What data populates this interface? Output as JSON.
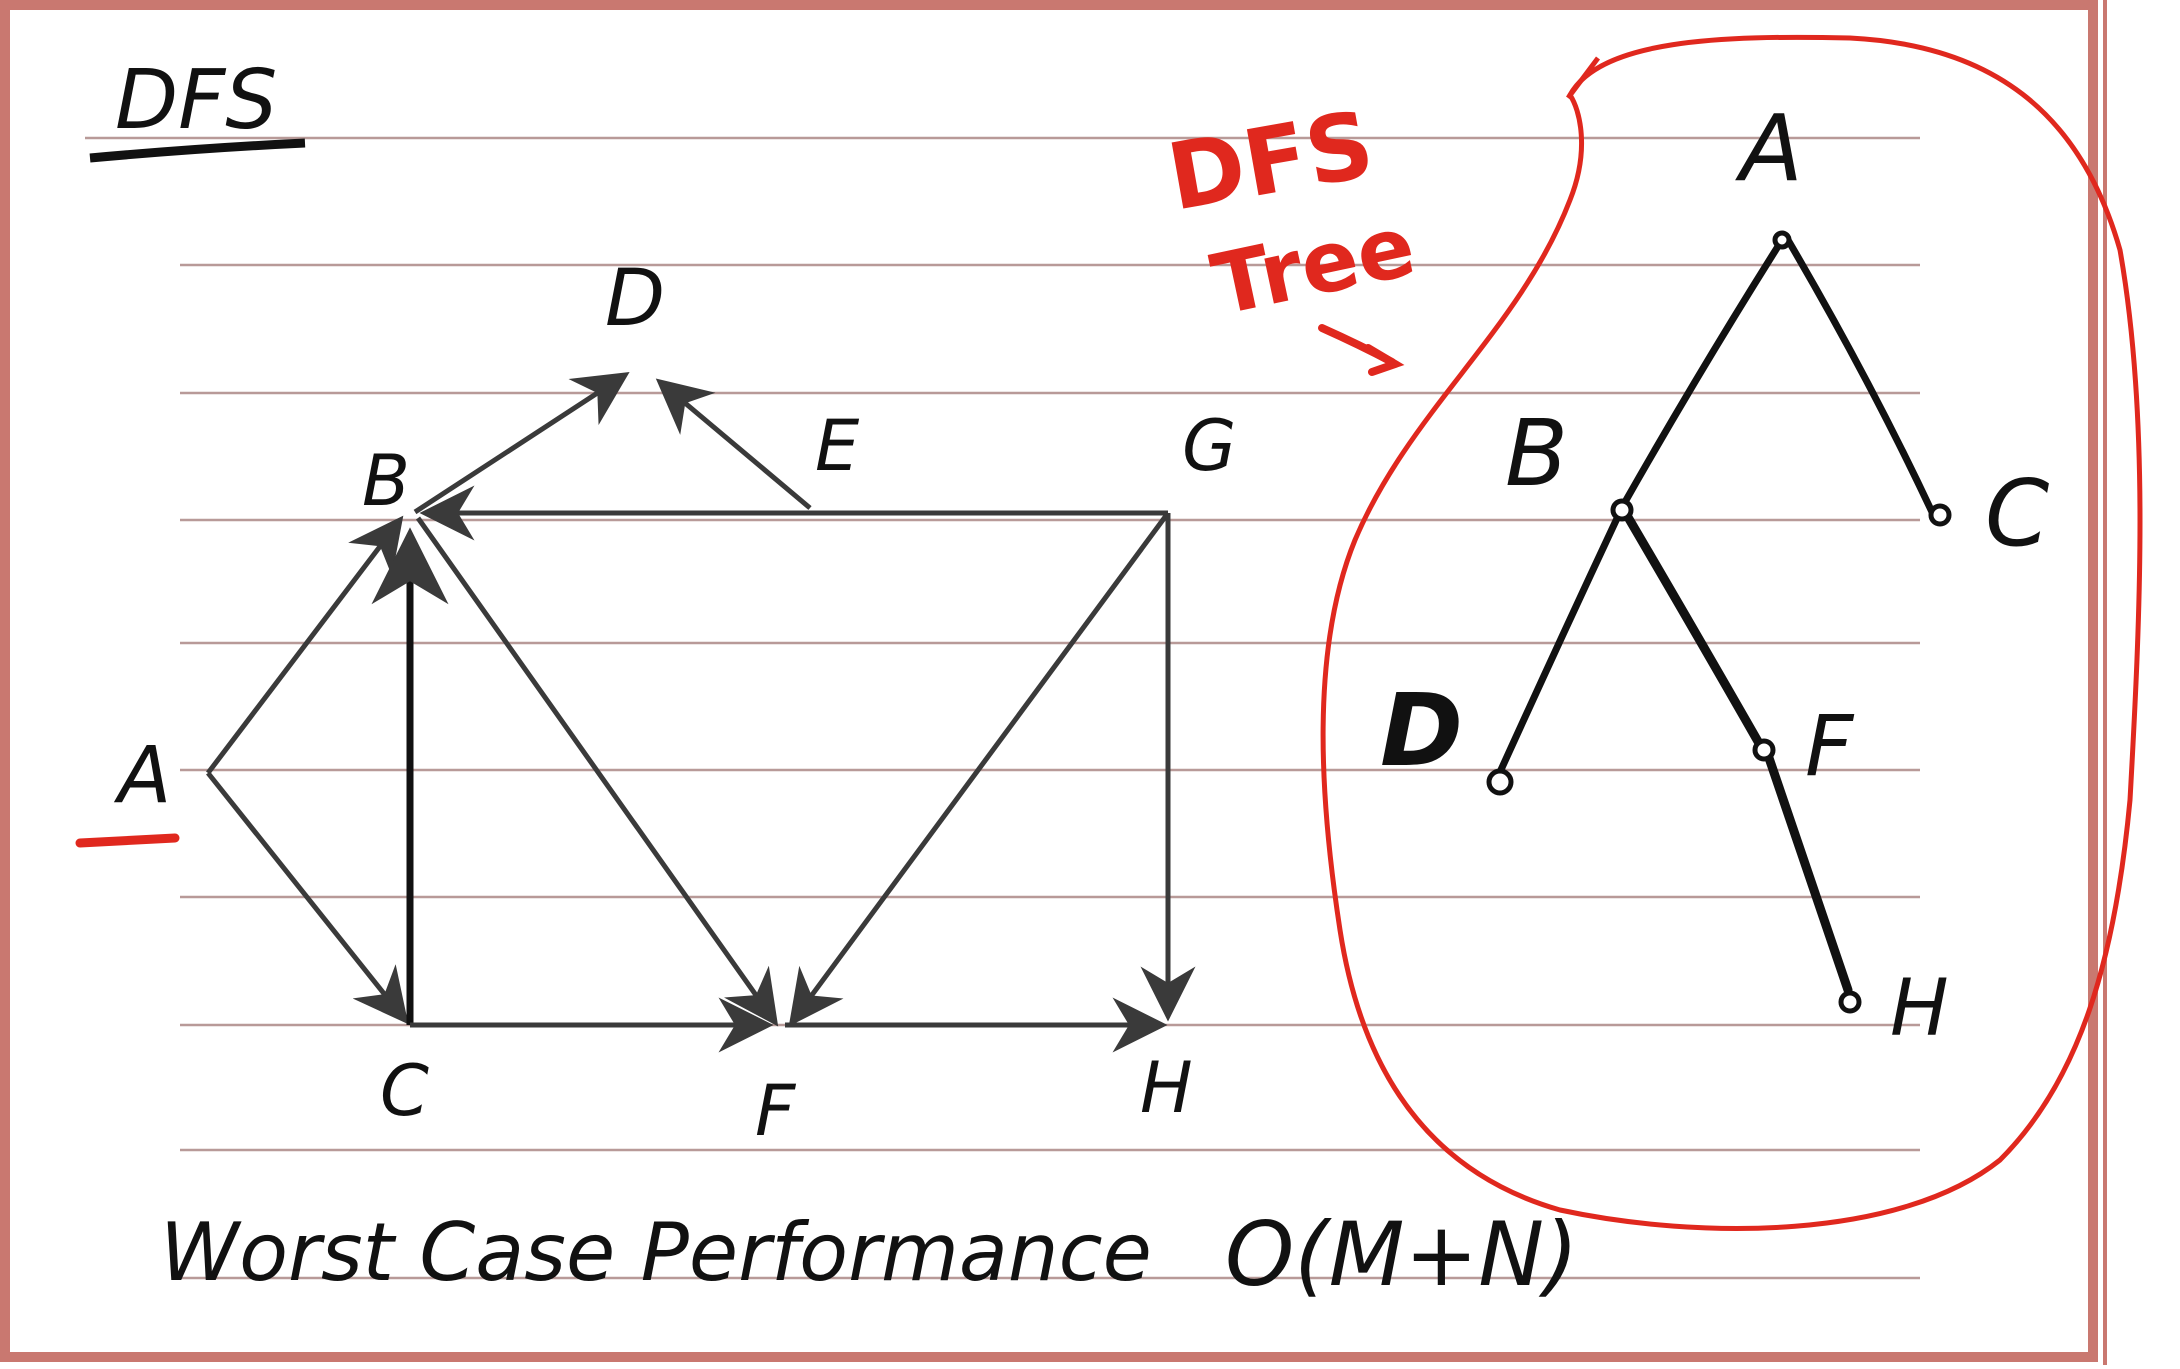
{
  "title": "DFS",
  "graph": {
    "nodes": [
      {
        "id": "A",
        "label": "A"
      },
      {
        "id": "B",
        "label": "B"
      },
      {
        "id": "C",
        "label": "C"
      },
      {
        "id": "D",
        "label": "D"
      },
      {
        "id": "E",
        "label": "E"
      },
      {
        "id": "F",
        "label": "F"
      },
      {
        "id": "G",
        "label": "G"
      },
      {
        "id": "H",
        "label": "H"
      }
    ],
    "edges": [
      {
        "from": "A",
        "to": "B"
      },
      {
        "from": "A",
        "to": "C"
      },
      {
        "from": "C",
        "to": "B"
      },
      {
        "from": "B",
        "to": "D"
      },
      {
        "from": "E",
        "to": "D"
      },
      {
        "from": "G",
        "to": "B"
      },
      {
        "from": "B",
        "to": "F"
      },
      {
        "from": "G",
        "to": "F"
      },
      {
        "from": "C",
        "to": "F"
      },
      {
        "from": "F",
        "to": "H"
      },
      {
        "from": "G",
        "to": "H"
      }
    ]
  },
  "annotation": {
    "line1": "DFS",
    "line2": "Tree"
  },
  "tree": {
    "nodes": [
      {
        "id": "A",
        "label": "A"
      },
      {
        "id": "B",
        "label": "B"
      },
      {
        "id": "C",
        "label": "C"
      },
      {
        "id": "D",
        "label": "D"
      },
      {
        "id": "F",
        "label": "F"
      },
      {
        "id": "H",
        "label": "H"
      }
    ],
    "edges": [
      {
        "from": "A",
        "to": "B"
      },
      {
        "from": "A",
        "to": "C"
      },
      {
        "from": "B",
        "to": "D"
      },
      {
        "from": "B",
        "to": "F"
      },
      {
        "from": "F",
        "to": "H"
      }
    ]
  },
  "footer": {
    "text": "Worst Case Performance",
    "complexity": "O(M+N)"
  },
  "colors": {
    "border": "#c97870",
    "rule": "#b89a98",
    "ink": "#111111",
    "graph_ink": "#3a3a3a",
    "red": "#e0281e"
  }
}
